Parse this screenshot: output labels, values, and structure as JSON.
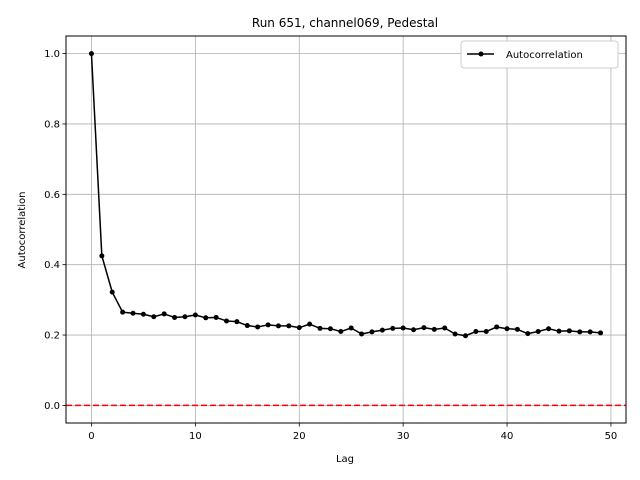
{
  "chart_data": {
    "type": "line",
    "title": "Run 651, channel069, Pedestal",
    "xlabel": "Lag",
    "ylabel": "Autocorrelation",
    "xlim": [
      -2.45,
      51.45
    ],
    "ylim": [
      -0.05,
      1.05
    ],
    "x_ticks": [
      0,
      10,
      20,
      30,
      40,
      50
    ],
    "y_ticks": [
      0.0,
      0.2,
      0.4,
      0.6,
      0.8,
      1.0
    ],
    "x_tick_labels": [
      "0",
      "10",
      "20",
      "30",
      "40",
      "50"
    ],
    "y_tick_labels": [
      "0.0",
      "0.2",
      "0.4",
      "0.6",
      "0.8",
      "1.0"
    ],
    "grid": true,
    "legend_position": "top-right",
    "series": [
      {
        "name": "Autocorrelation",
        "color": "#000000",
        "marker": "circle",
        "x": [
          0,
          1,
          2,
          3,
          4,
          5,
          6,
          7,
          8,
          9,
          10,
          11,
          12,
          13,
          14,
          15,
          16,
          17,
          18,
          19,
          20,
          21,
          22,
          23,
          24,
          25,
          26,
          27,
          28,
          29,
          30,
          31,
          32,
          33,
          34,
          35,
          36,
          37,
          38,
          39,
          40,
          41,
          42,
          43,
          44,
          45,
          46,
          47,
          48,
          49
        ],
        "y": [
          1.0,
          0.425,
          0.322,
          0.265,
          0.262,
          0.259,
          0.252,
          0.26,
          0.25,
          0.252,
          0.257,
          0.249,
          0.25,
          0.24,
          0.238,
          0.227,
          0.223,
          0.229,
          0.226,
          0.226,
          0.221,
          0.231,
          0.219,
          0.218,
          0.21,
          0.22,
          0.203,
          0.209,
          0.214,
          0.219,
          0.22,
          0.215,
          0.221,
          0.216,
          0.22,
          0.203,
          0.198,
          0.21,
          0.21,
          0.223,
          0.218,
          0.216,
          0.204,
          0.21,
          0.218,
          0.211,
          0.212,
          0.209,
          0.209,
          0.206
        ]
      }
    ],
    "reference_line": {
      "y": 0.0,
      "color": "#ff0000",
      "style": "dashed"
    }
  }
}
